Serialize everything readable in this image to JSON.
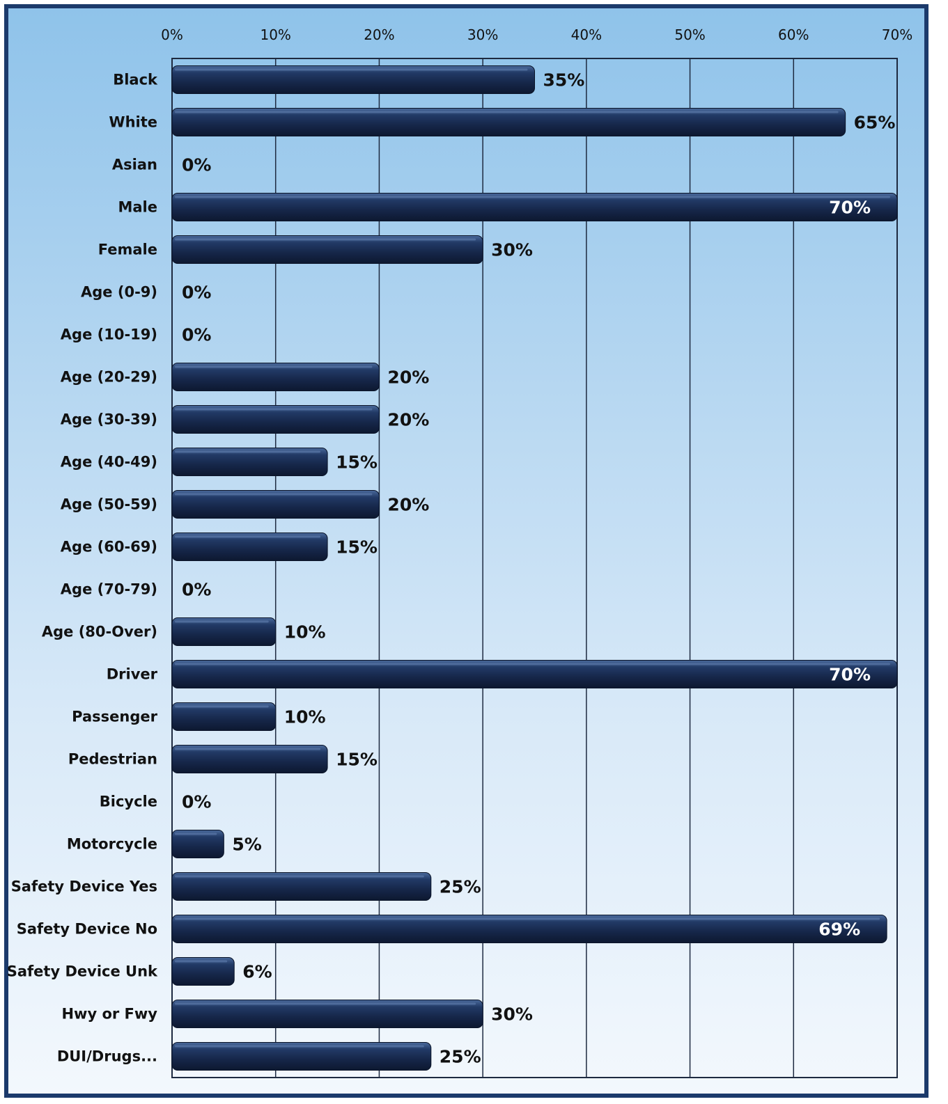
{
  "chart_data": {
    "type": "bar",
    "orientation": "horizontal",
    "title": "",
    "xlabel": "",
    "ylabel": "",
    "xlim": [
      0,
      70
    ],
    "x_ticks": [
      "0%",
      "10%",
      "20%",
      "30%",
      "40%",
      "50%",
      "60%",
      "70%"
    ],
    "x_tick_values": [
      0,
      10,
      20,
      30,
      40,
      50,
      60,
      70
    ],
    "grid": true,
    "axis_position": "top",
    "categories": [
      "Black",
      "White",
      "Asian",
      "Male",
      "Female",
      "Age (0-9)",
      "Age (10-19)",
      "Age (20-29)",
      "Age (30-39)",
      "Age (40-49)",
      "Age (50-59)",
      "Age (60-69)",
      "Age (70-79)",
      "Age (80-Over)",
      "Driver",
      "Passenger",
      "Pedestrian",
      "Bicycle",
      "Motorcycle",
      "Safety Device Yes",
      "Safety Device No",
      "Safety Device Unk",
      "Hwy or Fwy",
      "DUI/Drugs..."
    ],
    "values": [
      35,
      65,
      0,
      70,
      30,
      0,
      0,
      20,
      20,
      15,
      20,
      15,
      0,
      10,
      70,
      10,
      15,
      0,
      5,
      25,
      69,
      6,
      30,
      25
    ],
    "data_labels": [
      "35%",
      "65%",
      "0%",
      "70%",
      "30%",
      "0%",
      "0%",
      "20%",
      "20%",
      "15%",
      "20%",
      "15%",
      "0%",
      "10%",
      "70%",
      "10%",
      "15%",
      "0%",
      "5%",
      "25%",
      "69%",
      "6%",
      "30%",
      "25%"
    ],
    "colors": {
      "bar": "#1a2c4e",
      "bar_highlight": "#3b5a8a",
      "frame": "#1c3a6b",
      "grid": "#1e2a40",
      "text": "#111111",
      "inside_label": "#ffffff"
    }
  }
}
